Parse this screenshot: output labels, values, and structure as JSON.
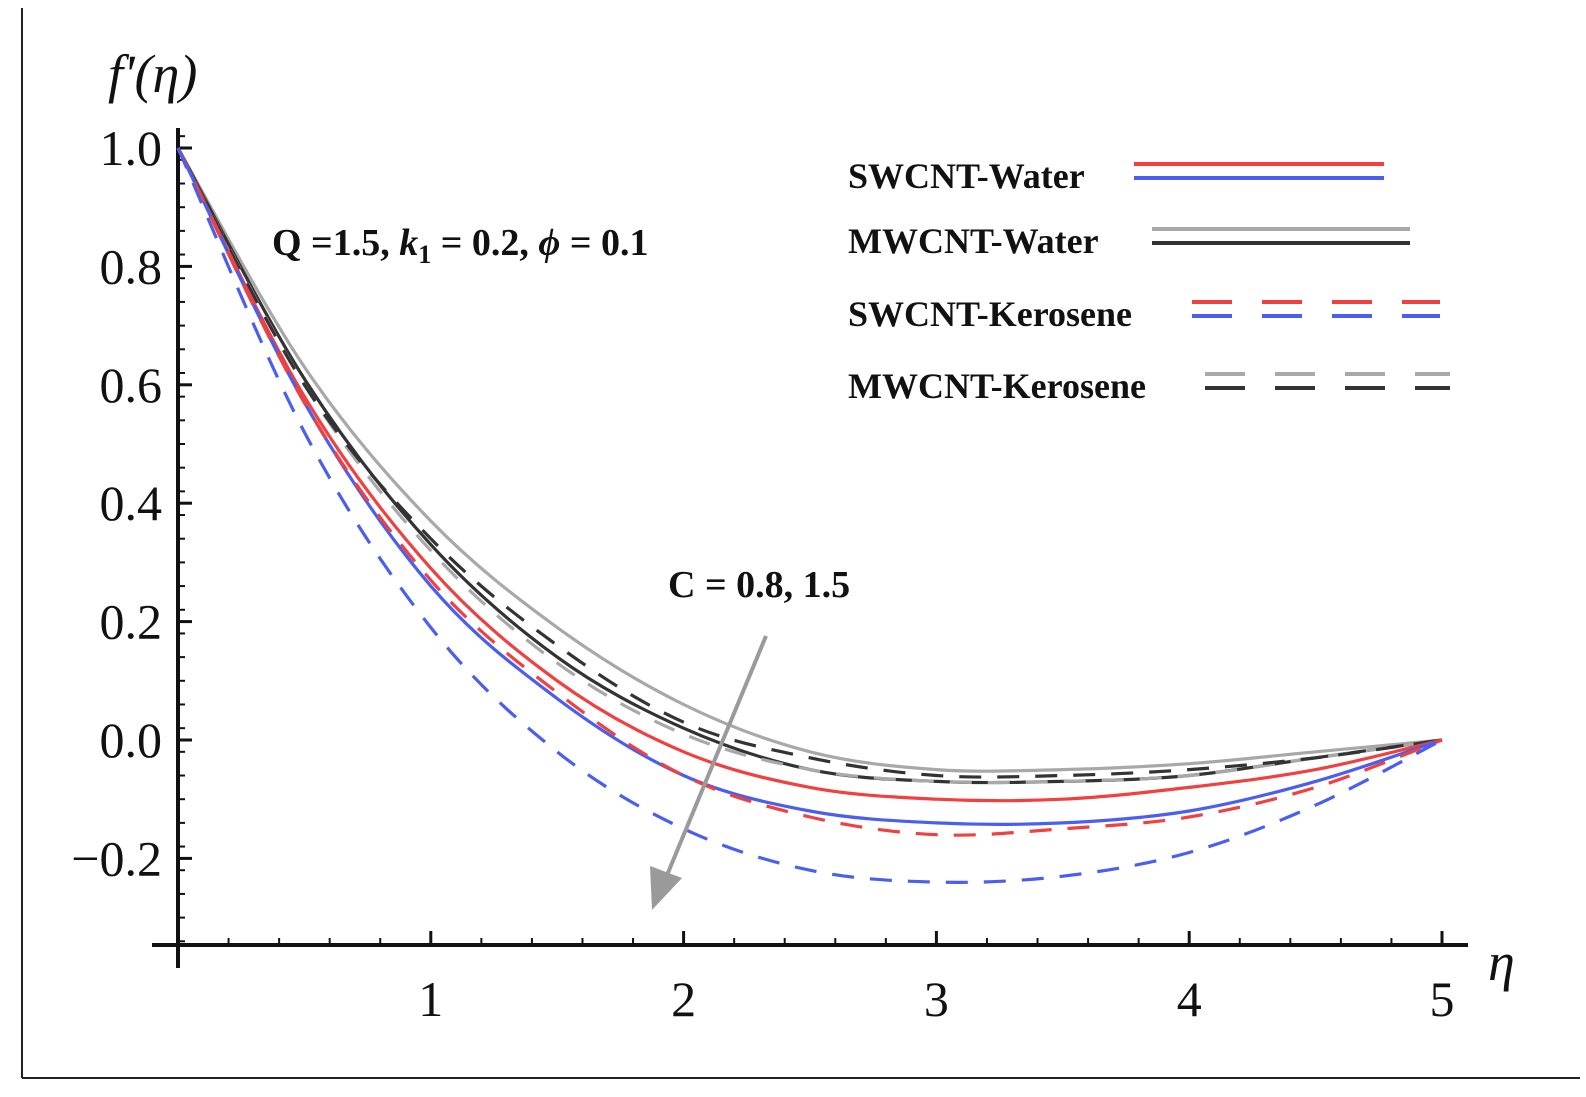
{
  "chart_data": {
    "type": "line",
    "ylabel": "f'(η)",
    "xlabel": "η",
    "xlim": [
      0,
      5
    ],
    "ylim": [
      -0.35,
      1.05
    ],
    "x_ticks": [
      1,
      2,
      3,
      4,
      5
    ],
    "x_tick_labels": [
      "1",
      "2",
      "3",
      "4",
      "5"
    ],
    "y_ticks": [
      1.0,
      0.8,
      0.6,
      0.4,
      0.2,
      0.0,
      -0.2
    ],
    "y_tick_labels": [
      "1.0",
      "0.8",
      "0.6",
      "0.4",
      "0.2",
      "0.0",
      "−0.2"
    ],
    "grid": false,
    "legend": [
      {
        "label": "SWCNT-Water",
        "style": "solid",
        "colors": [
          "#f04040",
          "#4a5ef0"
        ]
      },
      {
        "label": "MWCNT-Water",
        "style": "solid",
        "colors": [
          "#a8a8a8",
          "#333333"
        ]
      },
      {
        "label": "SWCNT-Kerosene",
        "style": "dashed",
        "colors": [
          "#f04040",
          "#4a5ef0"
        ]
      },
      {
        "label": "MWCNT-Kerosene",
        "style": "dashed",
        "colors": [
          "#a8a8a8",
          "#333333"
        ]
      }
    ],
    "legend_position": "top-right",
    "annotation_params": "Q =1.5, k₁ = 0.2, ϕ = 0.1",
    "annotation_params_parts": [
      "Q =1.5, ",
      "k",
      "1",
      " = 0.2, ",
      "ϕ",
      " = 0.1"
    ],
    "annotation_arrow": "C = 0.8, 1.5",
    "series": [
      {
        "name": "MWCNT-Water C=0.8",
        "color": "#a8a8a8",
        "dash": false,
        "fluid": "MWCNT-Water",
        "C": 0.8,
        "x": [
          0,
          0.5,
          1,
          1.5,
          2,
          2.5,
          3,
          3.5,
          4,
          4.5,
          5
        ],
        "y": [
          1.0,
          0.63,
          0.37,
          0.19,
          0.06,
          -0.02,
          -0.05,
          -0.05,
          -0.04,
          -0.02,
          0.0
        ]
      },
      {
        "name": "MWCNT-Water C=1.5",
        "color": "#333333",
        "dash": false,
        "fluid": "MWCNT-Water",
        "C": 1.5,
        "x": [
          0,
          0.5,
          1,
          1.5,
          2,
          2.5,
          3,
          3.5,
          4,
          4.5,
          5
        ],
        "y": [
          1.0,
          0.61,
          0.33,
          0.14,
          0.02,
          -0.05,
          -0.07,
          -0.07,
          -0.06,
          -0.03,
          0.0
        ]
      },
      {
        "name": "MWCNT-Kerosene C=0.8",
        "color": "#a8a8a8",
        "dash": true,
        "fluid": "MWCNT-Kerosene",
        "C": 0.8,
        "x": [
          0,
          0.5,
          1,
          1.5,
          2,
          2.5,
          3,
          3.5,
          4,
          4.5,
          5
        ],
        "y": [
          1.0,
          0.6,
          0.32,
          0.13,
          0.01,
          -0.05,
          -0.07,
          -0.07,
          -0.06,
          -0.03,
          0.0
        ]
      },
      {
        "name": "MWCNT-Kerosene C=1.5",
        "color": "#333333",
        "dash": true,
        "fluid": "MWCNT-Kerosene",
        "C": 1.5,
        "x": [
          0,
          0.5,
          1,
          1.5,
          2,
          2.5,
          3,
          3.5,
          4,
          4.5,
          5
        ],
        "y": [
          1.0,
          0.6,
          0.34,
          0.16,
          0.03,
          -0.03,
          -0.06,
          -0.06,
          -0.05,
          -0.03,
          0.0
        ]
      },
      {
        "name": "SWCNT-Water C=0.8",
        "color": "#f04040",
        "dash": false,
        "fluid": "SWCNT-Water",
        "C": 0.8,
        "x": [
          0,
          0.5,
          1,
          1.5,
          2,
          2.5,
          3,
          3.5,
          4,
          4.5,
          5
        ],
        "y": [
          1.0,
          0.58,
          0.29,
          0.1,
          -0.02,
          -0.08,
          -0.1,
          -0.1,
          -0.08,
          -0.05,
          0.0
        ]
      },
      {
        "name": "SWCNT-Water C=1.5",
        "color": "#4a5ef0",
        "dash": false,
        "fluid": "SWCNT-Water",
        "C": 1.5,
        "x": [
          0,
          0.5,
          1,
          1.5,
          2,
          2.5,
          3,
          3.5,
          4,
          4.5,
          5
        ],
        "y": [
          1.0,
          0.57,
          0.26,
          0.07,
          -0.06,
          -0.12,
          -0.14,
          -0.14,
          -0.12,
          -0.07,
          0.0
        ]
      },
      {
        "name": "SWCNT-Kerosene C=0.8",
        "color": "#f04040",
        "dash": true,
        "fluid": "SWCNT-Kerosene",
        "C": 0.8,
        "x": [
          0,
          0.5,
          1,
          1.5,
          2,
          2.5,
          3,
          3.5,
          4,
          4.5,
          5
        ],
        "y": [
          1.0,
          0.57,
          0.27,
          0.08,
          -0.06,
          -0.13,
          -0.16,
          -0.15,
          -0.13,
          -0.08,
          0.0
        ]
      },
      {
        "name": "SWCNT-Kerosene C=1.5",
        "color": "#4a5ef0",
        "dash": true,
        "fluid": "SWCNT-Kerosene",
        "C": 1.5,
        "x": [
          0,
          0.5,
          1,
          1.5,
          2,
          2.5,
          3,
          3.5,
          4,
          4.5,
          5
        ],
        "y": [
          1.0,
          0.52,
          0.19,
          -0.02,
          -0.15,
          -0.22,
          -0.24,
          -0.23,
          -0.19,
          -0.11,
          0.0
        ]
      }
    ]
  }
}
